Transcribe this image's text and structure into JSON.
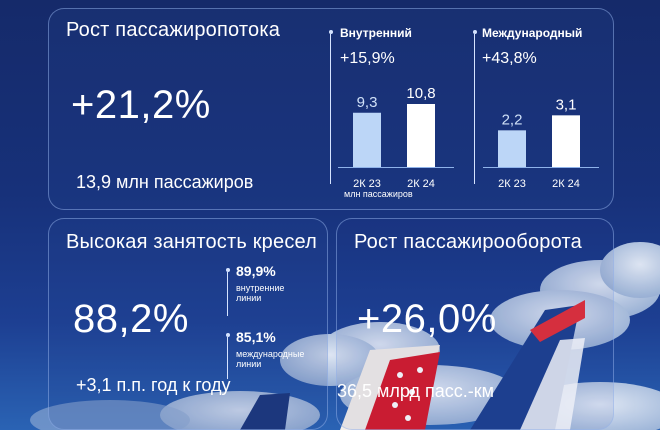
{
  "passenger_growth": {
    "title": "Рост пассажиропотока",
    "value": "+21,2%",
    "subtitle": "13,9 млн пассажиров"
  },
  "chart_data": [
    {
      "type": "bar",
      "title": "Внутренний",
      "growth": "+15,9%",
      "categories": [
        "2К 23",
        "2К 24"
      ],
      "values": [
        9.3,
        10.8
      ],
      "labels": [
        "9,3",
        "10,8"
      ],
      "unit": "млн пассажиров",
      "colors": [
        "#bcd6f7",
        "#ffffff"
      ]
    },
    {
      "type": "bar",
      "title": "Международный",
      "growth": "+43,8%",
      "categories": [
        "2К 23",
        "2К 24"
      ],
      "values": [
        2.2,
        3.1
      ],
      "labels": [
        "2,2",
        "3,1"
      ],
      "colors": [
        "#bcd6f7",
        "#ffffff"
      ]
    }
  ],
  "seat_occupancy": {
    "title": "Высокая занятость кресел",
    "value": "88,2%",
    "subtitle": "+3,1 п.п. год к году",
    "domestic": {
      "value": "89,9%",
      "label": "внутренние линии"
    },
    "international": {
      "value": "85,1%",
      "label": "международные линии"
    }
  },
  "passenger_turnover": {
    "title": "Рост пассажирооборота",
    "value": "+26,0%",
    "subtitle": "36,5 млрд пасс.-км"
  }
}
